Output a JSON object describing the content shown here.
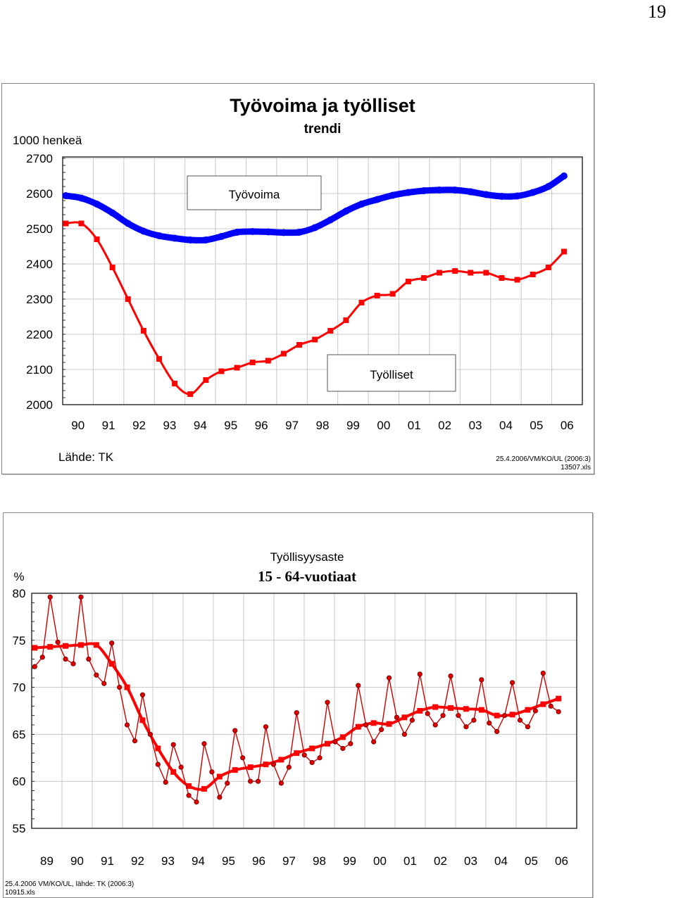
{
  "page_number": "19",
  "chart_data": [
    {
      "type": "line",
      "title": "Työvoima ja työlliset",
      "subtitle": "trendi",
      "ylabel": "1000 henkeä",
      "categories": [
        "90",
        "91",
        "92",
        "93",
        "94",
        "95",
        "96",
        "97",
        "98",
        "99",
        "00",
        "01",
        "02",
        "03",
        "04",
        "05",
        "06"
      ],
      "yticks": [
        "2700",
        "2600",
        "2500",
        "2400",
        "2300",
        "2200",
        "2100",
        "2000"
      ],
      "ylim": [
        2000,
        2700
      ],
      "xlim": [
        1990,
        2006
      ],
      "grid": true,
      "series": [
        {
          "name": "Työvoima",
          "color": "#0000ff",
          "x": [
            1990,
            1990.5,
            1991,
            1991.5,
            1992,
            1992.5,
            1993,
            1993.5,
            1994,
            1994.5,
            1995,
            1995.5,
            1996,
            1996.5,
            1997,
            1997.5,
            1998,
            1998.5,
            1999,
            1999.5,
            2000,
            2000.5,
            2001,
            2001.5,
            2002,
            2002.5,
            2003,
            2003.5,
            2004,
            2004.5,
            2005,
            2005.5,
            2006
          ],
          "values": [
            2594,
            2587,
            2570,
            2545,
            2515,
            2493,
            2480,
            2473,
            2468,
            2468,
            2478,
            2490,
            2492,
            2491,
            2489,
            2490,
            2503,
            2525,
            2550,
            2570,
            2583,
            2595,
            2603,
            2608,
            2610,
            2610,
            2605,
            2597,
            2592,
            2593,
            2603,
            2620,
            2650
          ]
        },
        {
          "name": "Työlliset",
          "color": "#ff0000",
          "x": [
            1990,
            1990.5,
            1991,
            1991.5,
            1992,
            1992.5,
            1993,
            1993.5,
            1994,
            1994.5,
            1995,
            1995.5,
            1996,
            1996.5,
            1997,
            1997.5,
            1998,
            1998.5,
            1999,
            1999.5,
            2000,
            2000.5,
            2001,
            2001.5,
            2002,
            2002.5,
            2003,
            2003.5,
            2004,
            2004.5,
            2005,
            2005.5,
            2006
          ],
          "values": [
            2515,
            2515,
            2470,
            2390,
            2300,
            2210,
            2130,
            2060,
            2030,
            2070,
            2095,
            2105,
            2120,
            2125,
            2145,
            2170,
            2185,
            2210,
            2240,
            2290,
            2310,
            2315,
            2350,
            2360,
            2375,
            2380,
            2375,
            2375,
            2360,
            2355,
            2370,
            2390,
            2435
          ]
        }
      ],
      "annotations": [
        "Työvoima",
        "Työlliset"
      ],
      "source": "Lähde: TK",
      "footnote_line1": "25.4.2006/VM/KO/UL (2006:3)",
      "footnote_line2": "13507.xls"
    },
    {
      "type": "line",
      "title": "Työllisyysaste",
      "subtitle": "15 - 64-vuotiaat",
      "ylabel": "%",
      "categories": [
        "89",
        "90",
        "91",
        "92",
        "93",
        "94",
        "95",
        "96",
        "97",
        "98",
        "99",
        "00",
        "01",
        "02",
        "03",
        "04",
        "05",
        "06"
      ],
      "yticks": [
        "80",
        "75",
        "70",
        "65",
        "60",
        "55"
      ],
      "ylim": [
        55,
        80
      ],
      "xlim": [
        1989,
        2006
      ],
      "grid": true,
      "series": [
        {
          "name": "",
          "color": "#ff0000",
          "style": "trend",
          "x": [
            1989,
            1989.5,
            1990,
            1990.5,
            1991,
            1991.5,
            1992,
            1992.5,
            1993,
            1993.5,
            1994,
            1994.5,
            1995,
            1995.5,
            1996,
            1996.5,
            1997,
            1997.5,
            1998,
            1998.5,
            1999,
            1999.5,
            2000,
            2000.5,
            2001,
            2001.5,
            2002,
            2002.5,
            2003,
            2003.5,
            2004,
            2004.5,
            2005,
            2005.5,
            2006
          ],
          "values": [
            74.2,
            74.3,
            74.4,
            74.5,
            74.5,
            72.5,
            70,
            66.5,
            63.5,
            61,
            59.5,
            59.2,
            60.5,
            61.2,
            61.5,
            61.8,
            62.3,
            63,
            63.5,
            64,
            64.7,
            65.8,
            66.2,
            66.1,
            66.8,
            67.5,
            67.9,
            67.8,
            67.7,
            67.6,
            67.0,
            67.1,
            67.6,
            68.2,
            68.8
          ]
        },
        {
          "name": "",
          "color": "#cc0000",
          "style": "monthly",
          "x": [
            1989,
            1989.25,
            1989.5,
            1989.75,
            1990,
            1990.25,
            1990.5,
            1990.75,
            1991,
            1991.25,
            1991.5,
            1991.75,
            1992,
            1992.25,
            1992.5,
            1992.75,
            1993,
            1993.25,
            1993.5,
            1993.75,
            1994,
            1994.25,
            1994.5,
            1994.75,
            1995,
            1995.25,
            1995.5,
            1995.75,
            1996,
            1996.25,
            1996.5,
            1996.75,
            1997,
            1997.25,
            1997.5,
            1997.75,
            1998,
            1998.25,
            1998.5,
            1998.75,
            1999,
            1999.25,
            1999.5,
            1999.75,
            2000,
            2000.25,
            2000.5,
            2000.75,
            2001,
            2001.25,
            2001.5,
            2001.75,
            2002,
            2002.25,
            2002.5,
            2002.75,
            2003,
            2003.25,
            2003.5,
            2003.75,
            2004,
            2004.25,
            2004.5,
            2004.75,
            2005,
            2005.25,
            2005.5,
            2005.75,
            2006
          ],
          "values": [
            72.2,
            73.2,
            79.6,
            74.8,
            73.0,
            72.5,
            79.6,
            73.0,
            71.3,
            70.4,
            74.7,
            70.0,
            66.0,
            64.3,
            69.2,
            65.0,
            61.8,
            59.9,
            63.9,
            61.5,
            58.5,
            57.8,
            64.0,
            61.0,
            58.3,
            59.8,
            65.4,
            62.5,
            60.0,
            60.0,
            65.8,
            61.8,
            59.8,
            61.5,
            67.3,
            62.8,
            62.0,
            62.5,
            68.4,
            64.2,
            63.5,
            64.0,
            70.2,
            66.0,
            64.2,
            65.5,
            71.0,
            66.8,
            65.0,
            66.5,
            71.4,
            67.2,
            66.0,
            67.0,
            71.2,
            67.0,
            65.8,
            66.5,
            70.8,
            66.2,
            65.3,
            67.0,
            70.5,
            66.5,
            65.8,
            67.5,
            71.5,
            68.0,
            67.4
          ]
        }
      ],
      "footnote_line1": "25.4.2006 VM/KO/UL, lähde: TK (2006:3)",
      "footnote_line2": "10915.xls"
    }
  ]
}
